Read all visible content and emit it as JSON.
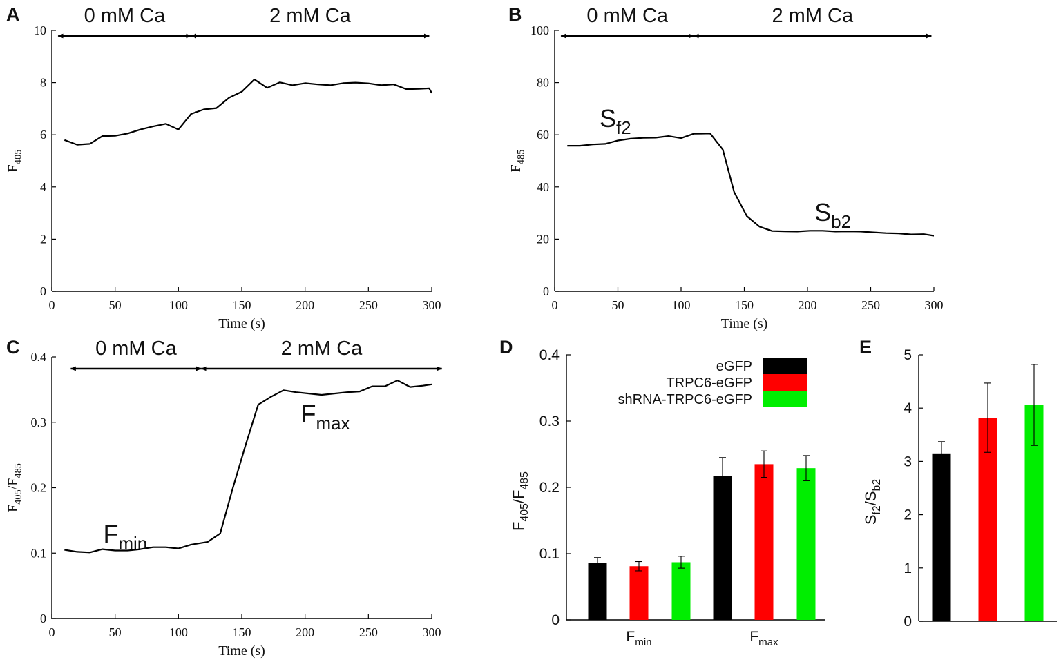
{
  "colors": {
    "eGFP": "#000000",
    "TRPC6-eGFP": "#ff0000",
    "shRNA-TRPC6-eGFP": "#00ee00",
    "axis": "#000000"
  },
  "chart_data": [
    {
      "id": "A",
      "panel_label": "A",
      "type": "line",
      "xlabel": "Time (s)",
      "ylabel_main": "F",
      "ylabel_sub": "405",
      "xlim": [
        0,
        300
      ],
      "ylim": [
        0,
        10
      ],
      "xticks": [
        "0",
        "50",
        "100",
        "150",
        "200",
        "250",
        "300"
      ],
      "yticks": [
        "0",
        "2",
        "4",
        "6",
        "8",
        "10"
      ],
      "segments": [
        {
          "label": "0 mM Ca",
          "x_start": 5,
          "x_end": 110
        },
        {
          "label": "2 mM Ca",
          "x_start": 110,
          "x_end": 298
        }
      ],
      "x": [
        10,
        20,
        30,
        40,
        50,
        60,
        70,
        80,
        90,
        100,
        110,
        120,
        130,
        140,
        150,
        160,
        170,
        180,
        190,
        200,
        210,
        220,
        230,
        240,
        250,
        260,
        270,
        280,
        290,
        298,
        300
      ],
      "y": [
        5.8,
        5.62,
        5.65,
        5.95,
        5.96,
        6.05,
        6.2,
        6.32,
        6.42,
        6.2,
        6.8,
        6.97,
        7.02,
        7.42,
        7.65,
        8.12,
        7.8,
        8.01,
        7.9,
        7.98,
        7.93,
        7.9,
        7.98,
        8.0,
        7.97,
        7.9,
        7.93,
        7.75,
        7.76,
        7.78,
        7.6
      ]
    },
    {
      "id": "B",
      "panel_label": "B",
      "type": "line",
      "xlabel": "Time (s)",
      "ylabel_main": "F",
      "ylabel_sub": "485",
      "xlim": [
        0,
        300
      ],
      "ylim": [
        0,
        100
      ],
      "xticks": [
        "0",
        "50",
        "100",
        "150",
        "200",
        "250",
        "300"
      ],
      "yticks": [
        "0",
        "20",
        "40",
        "60",
        "80",
        "100"
      ],
      "segments": [
        {
          "label": "0 mM Ca",
          "x_start": 5,
          "x_end": 110
        },
        {
          "label": "2 mM Ca",
          "x_start": 110,
          "x_end": 298
        }
      ],
      "annotations": [
        {
          "main": "S",
          "sub": "f2",
          "x": 48,
          "y": 63
        },
        {
          "main": "S",
          "sub": "b2",
          "x": 220,
          "y": 27
        }
      ],
      "x": [
        10,
        20,
        30,
        40,
        50,
        60,
        70,
        80,
        90,
        100,
        110,
        123,
        133,
        142,
        152,
        162,
        172,
        182,
        192,
        202,
        212,
        222,
        232,
        242,
        252,
        262,
        272,
        282,
        292,
        300
      ],
      "y": [
        55.8,
        55.8,
        56.3,
        56.5,
        57.8,
        58.5,
        58.8,
        58.9,
        59.5,
        58.7,
        60.4,
        60.5,
        54.3,
        38.0,
        28.8,
        24.8,
        23.1,
        23.0,
        22.9,
        23.2,
        23.2,
        22.9,
        23.0,
        22.9,
        22.6,
        22.3,
        22.2,
        21.8,
        21.9,
        21.3
      ]
    },
    {
      "id": "C",
      "panel_label": "C",
      "type": "line",
      "xlabel": "Time (s)",
      "ylabel_main": "F",
      "ylabel_sub": "405",
      "ylabel_mid": "/F",
      "ylabel_sub2": "485",
      "xlim": [
        0,
        300
      ],
      "ylim": [
        0,
        0.4
      ],
      "xticks": [
        "0",
        "50",
        "100",
        "150",
        "200",
        "250",
        "300"
      ],
      "yticks": [
        "0",
        "0.1",
        "0.2",
        "0.3",
        "0.4"
      ],
      "segments": [
        {
          "label": "0 mM Ca",
          "x_start": 15,
          "x_end": 118
        },
        {
          "label": "2 mM Ca",
          "x_start": 118,
          "x_end": 308
        }
      ],
      "annotations": [
        {
          "main": "F",
          "sub": "min",
          "x": 58,
          "y": 0.116
        },
        {
          "main": "F",
          "sub": "max",
          "x": 216,
          "y": 0.3
        }
      ],
      "x": [
        10,
        20,
        30,
        40,
        50,
        60,
        70,
        80,
        90,
        100,
        110,
        123,
        133,
        143,
        153,
        163,
        173,
        183,
        193,
        203,
        213,
        223,
        233,
        243,
        253,
        263,
        273,
        283,
        293,
        300
      ],
      "y": [
        0.105,
        0.102,
        0.101,
        0.106,
        0.104,
        0.104,
        0.106,
        0.109,
        0.109,
        0.107,
        0.113,
        0.117,
        0.13,
        0.2,
        0.265,
        0.327,
        0.339,
        0.349,
        0.346,
        0.344,
        0.342,
        0.344,
        0.346,
        0.347,
        0.355,
        0.355,
        0.364,
        0.354,
        0.356,
        0.358
      ]
    },
    {
      "id": "D",
      "panel_label": "D",
      "type": "bar",
      "ylabel_main": "F",
      "ylabel_sub": "405",
      "ylabel_mid": "/F",
      "ylabel_sub2": "485",
      "ylim": [
        0,
        0.4
      ],
      "yticks": [
        "0",
        "0.1",
        "0.2",
        "0.3",
        "0.4"
      ],
      "groups": [
        {
          "main": "F",
          "sub": "min"
        },
        {
          "main": "F",
          "sub": "max"
        }
      ],
      "legend": [
        "eGFP",
        "TRPC6-eGFP",
        "shRNA-TRPC6-eGFP"
      ],
      "legend_position": "top-right",
      "series": [
        {
          "name": "eGFP",
          "values": [
            0.086,
            0.217
          ],
          "errors": [
            0.008,
            0.028
          ]
        },
        {
          "name": "TRPC6-eGFP",
          "values": [
            0.081,
            0.235
          ],
          "errors": [
            0.007,
            0.02
          ]
        },
        {
          "name": "shRNA-TRPC6-eGFP",
          "values": [
            0.087,
            0.229
          ],
          "errors": [
            0.009,
            0.019
          ]
        }
      ]
    },
    {
      "id": "E",
      "panel_label": "E",
      "type": "bar",
      "ylabel_main": "S",
      "ylabel_sub": "f2",
      "ylabel_mid": "/S",
      "ylabel_sub2": "b2",
      "ylim": [
        0,
        5
      ],
      "yticks": [
        "0",
        "1",
        "2",
        "3",
        "4",
        "5"
      ],
      "series": [
        {
          "name": "eGFP",
          "values": [
            3.15
          ],
          "errors": [
            0.22
          ]
        },
        {
          "name": "TRPC6-eGFP",
          "values": [
            3.82
          ],
          "errors": [
            0.65
          ]
        },
        {
          "name": "shRNA-TRPC6-eGFP",
          "values": [
            4.06
          ],
          "errors": [
            0.76
          ]
        }
      ]
    }
  ]
}
